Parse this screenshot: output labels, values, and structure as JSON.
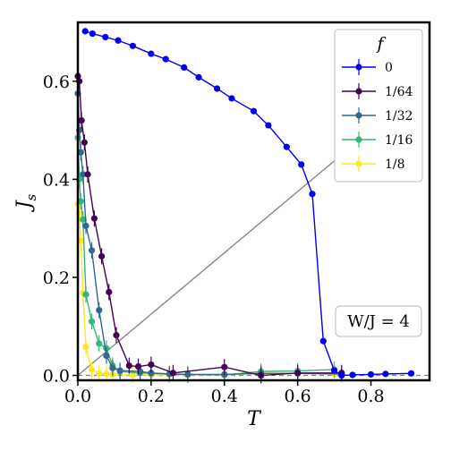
{
  "chart_data": {
    "type": "line",
    "title": "",
    "xlabel": "T",
    "ylabel": "J",
    "ylabel_subscript": "s",
    "xlim": [
      0.0,
      0.96
    ],
    "ylim": [
      -0.01,
      0.72
    ],
    "xticks": [
      0.0,
      0.2,
      0.4,
      0.6,
      0.8
    ],
    "xtick_labels": [
      "0.0",
      "0.2",
      "0.4",
      "0.6",
      "0.8"
    ],
    "yticks": [
      0.0,
      0.2,
      0.4,
      0.6
    ],
    "ytick_labels": [
      "0.0",
      "0.2",
      "0.4",
      "0.6"
    ],
    "grid": false,
    "legend": {
      "title": "f",
      "placement": "top-right"
    },
    "annotation": "W/J = 4",
    "reference_lines": [
      {
        "style": "solid-gray",
        "x": [
          0.0,
          0.72
        ],
        "y": [
          0.0,
          0.45
        ]
      },
      {
        "style": "dashed-gray",
        "x": [
          0.0,
          0.96
        ],
        "y": [
          0.0,
          0.0
        ]
      }
    ],
    "series": [
      {
        "name": "0",
        "color": "#0000ee",
        "x": [
          0.02,
          0.04,
          0.075,
          0.11,
          0.15,
          0.2,
          0.24,
          0.29,
          0.33,
          0.38,
          0.42,
          0.48,
          0.52,
          0.57,
          0.61,
          0.64,
          0.67,
          0.7,
          0.72,
          0.75,
          0.8,
          0.84,
          0.91
        ],
        "y": [
          0.702,
          0.697,
          0.69,
          0.683,
          0.672,
          0.656,
          0.645,
          0.628,
          0.608,
          0.585,
          0.565,
          0.539,
          0.51,
          0.466,
          0.43,
          0.37,
          0.07,
          0.01,
          0.0,
          0.001,
          0.002,
          0.003,
          0.004
        ]
      },
      {
        "name": "1/64",
        "color": "#440154",
        "x": [
          0.0,
          0.004,
          0.01,
          0.018,
          0.027,
          0.045,
          0.065,
          0.085,
          0.105,
          0.14,
          0.165,
          0.2,
          0.26,
          0.4,
          0.5,
          0.6,
          0.72
        ],
        "y": [
          0.61,
          0.6,
          0.52,
          0.475,
          0.41,
          0.32,
          0.243,
          0.17,
          0.082,
          0.02,
          0.018,
          0.022,
          0.005,
          0.017,
          0.0,
          0.005,
          0.005
        ]
      },
      {
        "name": "1/32",
        "color": "#31688e",
        "x": [
          0.0,
          0.004,
          0.008,
          0.014,
          0.022,
          0.038,
          0.058,
          0.078,
          0.095,
          0.115,
          0.17,
          0.2,
          0.25,
          0.3,
          0.4,
          0.5,
          0.6,
          0.72
        ],
        "y": [
          0.575,
          0.5,
          0.455,
          0.41,
          0.305,
          0.255,
          0.133,
          0.04,
          0.015,
          0.01,
          0.008,
          0.005,
          0.003,
          0.002,
          0.002,
          0.004,
          0.004,
          0.003
        ]
      },
      {
        "name": "1/16",
        "color": "#35b779",
        "x": [
          0.0,
          0.004,
          0.008,
          0.014,
          0.022,
          0.038,
          0.058,
          0.078,
          0.095,
          0.115,
          0.17,
          0.2,
          0.25,
          0.3,
          0.4,
          0.5,
          0.6,
          0.7
        ],
        "y": [
          0.485,
          0.4,
          0.355,
          0.318,
          0.165,
          0.11,
          0.065,
          0.055,
          0.02,
          0.008,
          0.005,
          0.004,
          0.003,
          0.002,
          0.001,
          0.008,
          0.009,
          0.012
        ]
      },
      {
        "name": "1/8",
        "color": "#fde725",
        "x": [
          0.0,
          0.004,
          0.008,
          0.014,
          0.022,
          0.038,
          0.058,
          0.078,
          0.095,
          0.15,
          0.2,
          0.25,
          0.3,
          0.4,
          0.5,
          0.6,
          0.7
        ],
        "y": [
          0.35,
          0.33,
          0.275,
          0.168,
          0.058,
          0.012,
          0.004,
          0.003,
          0.002,
          0.001,
          0.001,
          0.001,
          0.001,
          0.001,
          0.005,
          0.004,
          0.003
        ]
      }
    ]
  }
}
